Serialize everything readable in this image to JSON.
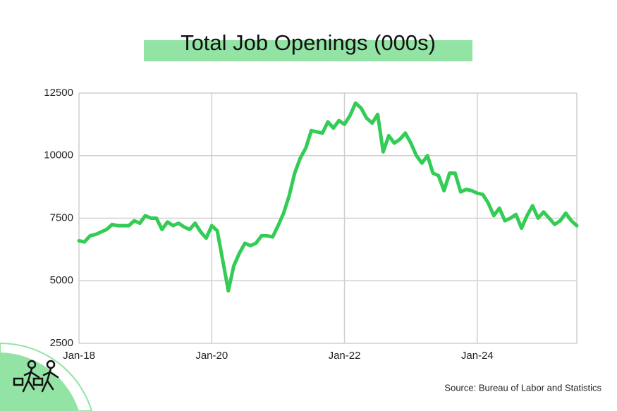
{
  "chart_data": {
    "type": "line",
    "title": "Total Job Openings (000s)",
    "source": "Source:  Bureau of Labor and Statistics",
    "categories": [
      "Jan-18",
      null,
      null,
      null,
      null,
      null,
      null,
      null,
      null,
      null,
      null,
      null,
      null,
      null,
      null,
      null,
      null,
      null,
      null,
      null,
      null,
      null,
      null,
      null,
      "Jan-20",
      null,
      null,
      null,
      null,
      null,
      null,
      null,
      null,
      null,
      null,
      null,
      null,
      null,
      null,
      null,
      null,
      null,
      null,
      null,
      null,
      null,
      null,
      null,
      "Jan-22",
      null,
      null,
      null,
      null,
      null,
      null,
      null,
      null,
      null,
      null,
      null,
      null,
      null,
      null,
      null,
      null,
      null,
      null,
      null,
      null,
      null,
      null,
      null,
      "Jan-24",
      null,
      null,
      null,
      null,
      null,
      null,
      null,
      null,
      null,
      null,
      null,
      null,
      null,
      null,
      null,
      null,
      null,
      null
    ],
    "series": [
      {
        "name": "Total Job Openings",
        "color": "#33cc55",
        "values": [
          6600,
          6550,
          6800,
          6850,
          6950,
          7050,
          7250,
          7200,
          7200,
          7200,
          7400,
          7300,
          7600,
          7500,
          7500,
          7050,
          7350,
          7200,
          7300,
          7150,
          7050,
          7300,
          6950,
          6700,
          7200,
          7000,
          5800,
          4600,
          5600,
          6100,
          6500,
          6400,
          6500,
          6800,
          6800,
          6750,
          7200,
          7700,
          8400,
          9300,
          9900,
          10300,
          11000,
          10950,
          10900,
          11350,
          11100,
          11400,
          11250,
          11600,
          12100,
          11900,
          11500,
          11300,
          11650,
          10150,
          10800,
          10500,
          10650,
          10900,
          10500,
          10000,
          9700,
          10000,
          9300,
          9200,
          8600,
          9300,
          9300,
          8550,
          8650,
          8600,
          8500,
          8450,
          8100,
          7600,
          7900,
          7400,
          7500,
          7650,
          7100,
          7600,
          8000,
          7500,
          7750,
          7500,
          7250,
          7400,
          7700,
          7400,
          7200
        ]
      }
    ],
    "ylim": [
      2500,
      12500
    ],
    "yticks": [
      2500,
      5000,
      7500,
      10000,
      12500
    ],
    "grid": true
  }
}
